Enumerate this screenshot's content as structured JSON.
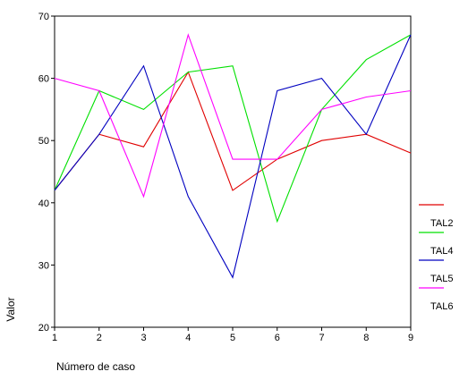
{
  "chart_data": {
    "type": "line",
    "x": [
      1,
      2,
      3,
      4,
      5,
      6,
      7,
      8,
      9
    ],
    "xlabel": "Número de caso",
    "ylabel": "Valor",
    "xlim": [
      1,
      9
    ],
    "ylim": [
      20,
      70
    ],
    "yticks": [
      20,
      30,
      40,
      50,
      60,
      70
    ],
    "grid": false,
    "legend_position": "right",
    "series": [
      {
        "name": "",
        "color": "#e00000",
        "values": [
          42,
          51,
          49,
          61,
          42,
          47,
          50,
          51,
          48
        ]
      },
      {
        "name": "TAL2",
        "color": "#00e000",
        "values": [
          42,
          58,
          55,
          61,
          62,
          37,
          55,
          63,
          67
        ]
      },
      {
        "name": "TAL4",
        "color": "#0000c0",
        "values": [
          42,
          51,
          62,
          41,
          28,
          58,
          60,
          51,
          67
        ]
      },
      {
        "name": "TAL5",
        "color": "#ff00ff",
        "values": [
          60,
          58,
          41,
          67,
          47,
          47,
          55,
          57,
          58
        ]
      }
    ],
    "legend_labels": [
      "TAL2",
      "TAL4",
      "TAL5",
      "TAL6"
    ]
  }
}
